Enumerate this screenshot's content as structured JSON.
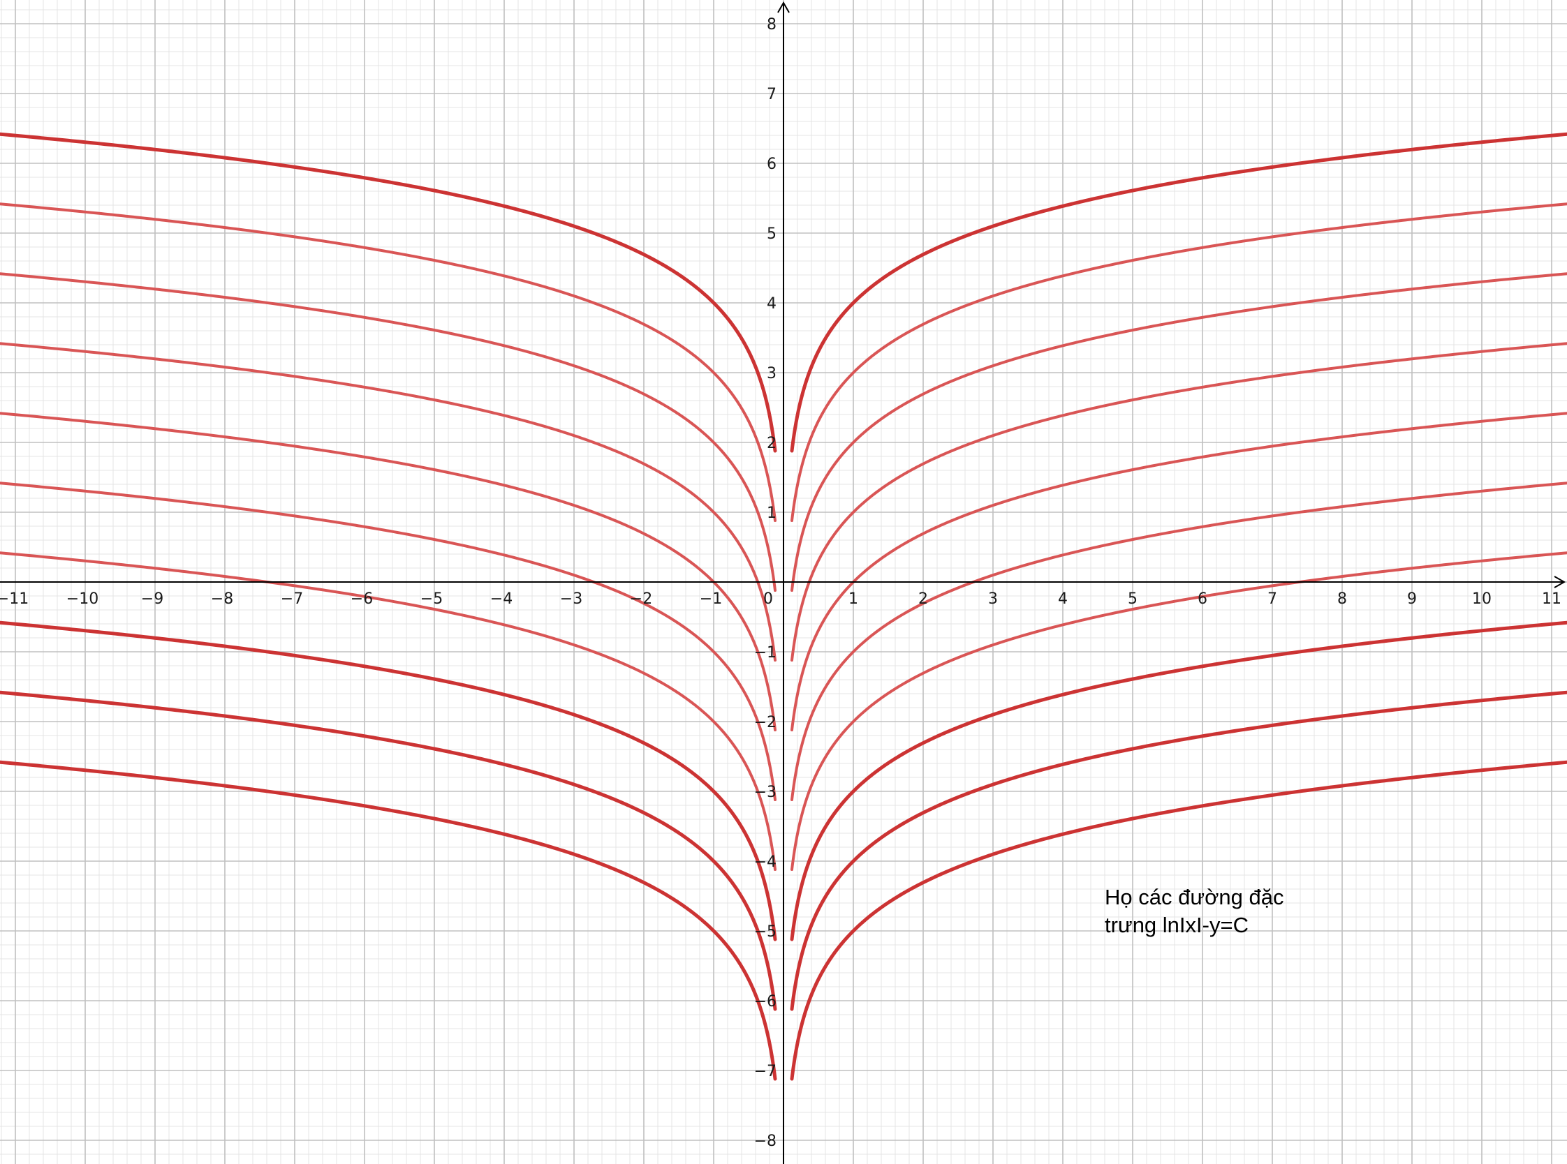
{
  "chart_data": {
    "type": "line",
    "title": "",
    "xlabel": "",
    "ylabel": "",
    "xlim": [
      -11.3,
      11.2
    ],
    "ylim": [
      -8.3,
      8.3
    ],
    "grid": true,
    "minor_grid_per_unit": 5,
    "function": "y = ln|x| - C",
    "family_parameter_C": [
      -4,
      -3,
      -2,
      -1,
      0,
      1,
      2,
      3,
      4,
      5
    ],
    "series_colors": {
      "thick": "#cc3333",
      "thin": "#d95555"
    },
    "thick_C_values": [
      -4,
      3,
      4,
      5
    ],
    "x_ticks": [
      "−11",
      "−10",
      "−9",
      "−8",
      "−7",
      "−6",
      "−5",
      "−4",
      "−3",
      "−2",
      "−1",
      "0",
      "1",
      "2",
      "3",
      "4",
      "5",
      "6",
      "7",
      "8",
      "9",
      "10",
      "11"
    ],
    "y_ticks": [
      "8",
      "7",
      "6",
      "5",
      "4",
      "3",
      "2",
      "1",
      "−1",
      "−2",
      "−3",
      "−4",
      "−5",
      "−6",
      "−7",
      "−8"
    ],
    "annotation_lines": [
      "Họ các đường đặc",
      "trưng lnIxI-y=C"
    ]
  },
  "colors": {
    "major_grid": "#c0c0c0",
    "minor_grid": "#e4e4e4",
    "axis": "#000000"
  }
}
